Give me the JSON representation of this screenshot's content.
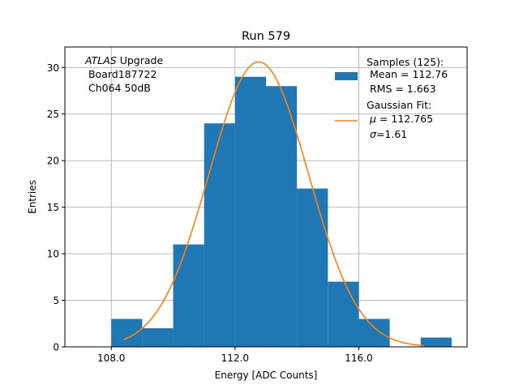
{
  "chart_data": {
    "type": "bar",
    "title": "Run 579",
    "xlabel": "Energy [ADC Counts]",
    "ylabel": "Entries",
    "xlim": [
      106.5,
      119.5
    ],
    "ylim": [
      0,
      32.2
    ],
    "xticks": [
      108,
      112,
      116
    ],
    "xtick_labels": [
      "108.0",
      "112.0",
      "116.0"
    ],
    "yticks": [
      0,
      5,
      10,
      15,
      20,
      25,
      30
    ],
    "ytick_labels": [
      "0",
      "5",
      "10",
      "15",
      "20",
      "25",
      "30"
    ],
    "grid": true,
    "histogram": {
      "bin_edges": [
        108,
        109,
        110,
        111,
        112,
        113,
        114,
        115,
        116,
        117,
        118,
        119
      ],
      "counts": [
        3,
        2,
        11,
        24,
        29,
        28,
        17,
        7,
        3,
        0,
        1
      ],
      "color": "#1f77b4"
    },
    "fit": {
      "mu": 112.765,
      "sigma": 1.61,
      "amplitude": 30.6,
      "x_range": [
        108.4,
        118.1
      ],
      "color": "#ff7f0e"
    },
    "annotation": {
      "line1_italic": "ATLAS",
      "line1_rest": " Upgrade",
      "line2": " Board187722",
      "line3": " Ch064 50dB"
    },
    "legend": {
      "position": "top-right",
      "samples_lines": [
        "Samples (125):",
        " Mean = 112.76",
        " RMS = 1.663"
      ],
      "fit_title": "Gaussian Fit:",
      "fit_mu_symbol": "μ",
      "fit_mu_value": " = 112.765",
      "fit_sigma_symbol": "σ",
      "fit_sigma_value": "=1.61"
    }
  }
}
